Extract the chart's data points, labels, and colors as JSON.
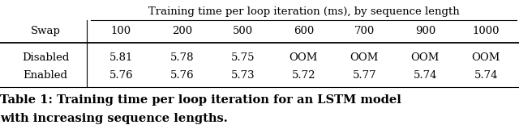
{
  "header_top": "Training time per loop iteration (ms), by sequence length",
  "col_header": "Swap",
  "columns": [
    "100",
    "200",
    "500",
    "600",
    "700",
    "900",
    "1000"
  ],
  "rows": [
    {
      "label": "Disabled",
      "values": [
        "5.81",
        "5.78",
        "5.75",
        "OOM",
        "OOM",
        "OOM",
        "OOM"
      ]
    },
    {
      "label": "Enabled",
      "values": [
        "5.76",
        "5.76",
        "5.73",
        "5.72",
        "5.77",
        "5.74",
        "5.74"
      ]
    }
  ],
  "caption_bold": "Table 1: Training time per loop iteration for an LSTM model",
  "caption_normal": "with increasing sequence lengths.",
  "bg_color": "#ffffff",
  "text_color": "#000000",
  "font_size": 9.5,
  "caption_font_size": 10.5
}
